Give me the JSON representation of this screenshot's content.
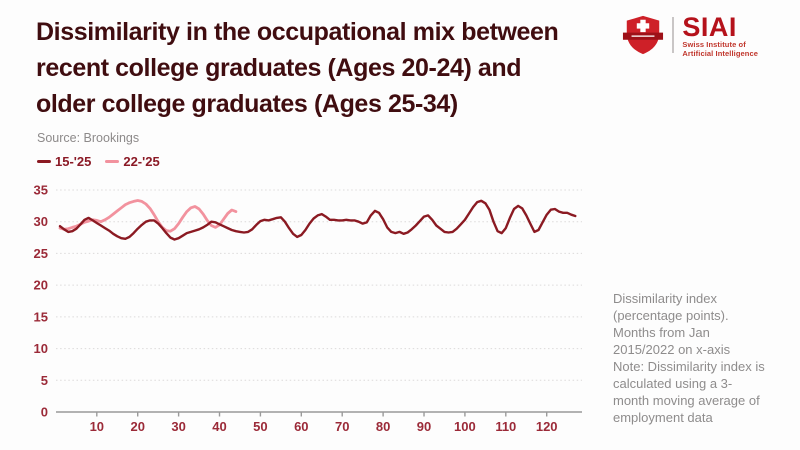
{
  "header": {
    "title_lines": [
      "Dissimilarity in the occupational mix between",
      "recent college graduates (Ages 20-24) and",
      "older college graduates (Ages 25-34)"
    ],
    "source": "Source: Brookings"
  },
  "logo": {
    "name": "SIAI",
    "subtitle_line1": "Swiss Institute of",
    "subtitle_line2": "Artificial Intelligence",
    "shield_color": "#ce2028",
    "text_color": "#b5121b"
  },
  "legend": {
    "items": [
      {
        "label": "15-'25",
        "color": "#8b1a22"
      },
      {
        "label": "22-'25",
        "color": "#f2929e"
      }
    ]
  },
  "note": {
    "lines": [
      "Dissimilarity index",
      "(percentage points).",
      "Months from Jan",
      "2015/2022 on x-axis",
      "Note: Dissimilarity index is",
      "calculated using a 3-",
      "month moving average of",
      "employment data"
    ]
  },
  "chart_data": {
    "type": "line",
    "title": "Dissimilarity in the occupational mix between recent college graduates (Ages 20-24) and older college graduates (Ages 25-34)",
    "xlabel": "Months from Jan 2015/2022",
    "ylabel": "Dissimilarity index (percentage points)",
    "ylim": [
      0,
      35
    ],
    "xlim": [
      1,
      131
    ],
    "y_ticks": [
      0,
      5,
      10,
      15,
      20,
      25,
      30,
      35
    ],
    "x_ticks": [
      10,
      20,
      30,
      40,
      50,
      60,
      70,
      80,
      90,
      100,
      110,
      120
    ],
    "grid": "horizontal-dotted",
    "legend_position": "top-left",
    "colors": {
      "tick_labels": "#9b2a38",
      "axis_line": "#9a9a9a",
      "gridline": "#dcdada"
    },
    "series": [
      {
        "name": "15-'25",
        "color": "#8b1a22",
        "x_start": 1,
        "values": [
          29.3,
          28.8,
          28.4,
          28.5,
          28.9,
          29.6,
          30.3,
          30.6,
          30.2,
          29.8,
          29.4,
          29.0,
          28.6,
          28.1,
          27.7,
          27.4,
          27.3,
          27.6,
          28.2,
          28.9,
          29.5,
          30.0,
          30.2,
          30.2,
          29.7,
          29.0,
          28.2,
          27.5,
          27.2,
          27.4,
          27.8,
          28.2,
          28.4,
          28.6,
          28.8,
          29.1,
          29.5,
          30.0,
          29.9,
          29.6,
          29.3,
          29.0,
          28.7,
          28.5,
          28.4,
          28.3,
          28.4,
          28.8,
          29.5,
          30.1,
          30.3,
          30.2,
          30.4,
          30.6,
          30.7,
          30.0,
          29.0,
          28.1,
          27.6,
          27.9,
          28.7,
          29.7,
          30.5,
          31.0,
          31.2,
          30.8,
          30.3,
          30.3,
          30.2,
          30.2,
          30.3,
          30.2,
          30.2,
          30.0,
          29.7,
          29.9,
          31.0,
          31.7,
          31.4,
          30.4,
          29.1,
          28.4,
          28.2,
          28.4,
          28.1,
          28.3,
          28.8,
          29.4,
          30.1,
          30.8,
          31.0,
          30.3,
          29.4,
          28.9,
          28.4,
          28.3,
          28.4,
          28.9,
          29.6,
          30.3,
          31.3,
          32.3,
          33.1,
          33.3,
          32.9,
          31.9,
          30.0,
          28.5,
          28.2,
          29.0,
          30.6,
          32.0,
          32.5,
          32.1,
          31.0,
          29.7,
          28.4,
          28.7,
          29.9,
          31.1,
          31.9,
          32.0,
          31.6,
          31.4,
          31.4,
          31.1,
          30.9
        ]
      },
      {
        "name": "22-'25",
        "color": "#f2929e",
        "x_start": 1,
        "values": [
          29.0,
          28.8,
          28.9,
          29.1,
          29.3,
          29.6,
          29.9,
          30.1,
          30.3,
          30.2,
          30.0,
          30.3,
          30.7,
          31.2,
          31.7,
          32.2,
          32.7,
          33.0,
          33.2,
          33.35,
          33.2,
          32.8,
          32.1,
          31.1,
          30.0,
          29.1,
          28.6,
          28.5,
          28.9,
          29.7,
          30.7,
          31.6,
          32.2,
          32.4,
          32.0,
          31.2,
          30.2,
          29.4,
          29.1,
          29.5,
          30.4,
          31.3,
          31.85,
          31.6
        ]
      }
    ]
  }
}
